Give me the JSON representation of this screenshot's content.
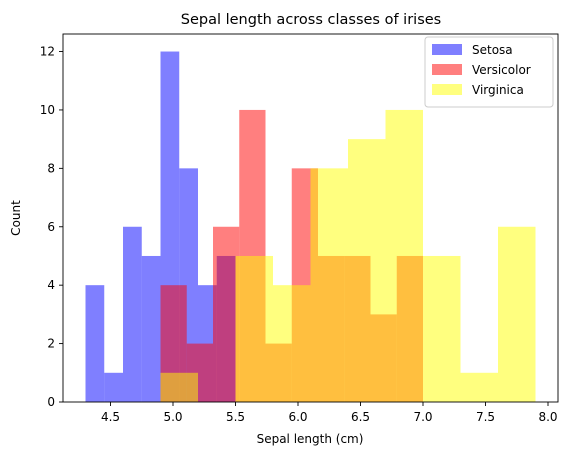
{
  "chart_data": {
    "type": "bar",
    "title": "Sepal length across classes of irises",
    "xlabel": "Sepal length (cm)",
    "ylabel": "Count",
    "xlim": [
      4.12,
      8.08
    ],
    "ylim": [
      0,
      12.6
    ],
    "xticks": [
      4.5,
      5.0,
      5.5,
      6.0,
      6.5,
      7.0,
      7.5,
      8.0
    ],
    "xtick_labels": [
      "4.5",
      "5.0",
      "5.5",
      "6.0",
      "6.5",
      "7.0",
      "7.5",
      "8.0"
    ],
    "yticks": [
      0,
      2,
      4,
      6,
      8,
      10,
      12
    ],
    "ytick_labels": [
      "0",
      "2",
      "4",
      "6",
      "8",
      "10",
      "12"
    ],
    "legend_position": "top-right",
    "alpha": 0.5,
    "series": [
      {
        "name": "Setosa",
        "color": "#0000ff",
        "bin_edges": [
          4.3,
          4.45,
          4.6,
          4.75,
          4.9,
          5.05,
          5.2,
          5.35,
          5.5,
          5.65,
          5.8
        ],
        "counts": [
          4,
          1,
          6,
          5,
          12,
          8,
          4,
          5,
          0,
          0
        ]
      },
      {
        "name": "Versicolor",
        "color": "#ff0000",
        "bin_edges": [
          4.9,
          5.11,
          5.32,
          5.53,
          5.74,
          5.95,
          6.16,
          6.37,
          6.58,
          6.79,
          7.0
        ],
        "counts": [
          4,
          2,
          6,
          10,
          2,
          8,
          5,
          5,
          3,
          5
        ]
      },
      {
        "name": "Virginica",
        "color": "#ffff00",
        "bin_edges": [
          4.9,
          5.2,
          5.5,
          5.8,
          6.1,
          6.4,
          6.7,
          7.0,
          7.3,
          7.6,
          7.9
        ],
        "counts": [
          1,
          0,
          5,
          4,
          8,
          9,
          10,
          5,
          1,
          6
        ]
      }
    ]
  }
}
